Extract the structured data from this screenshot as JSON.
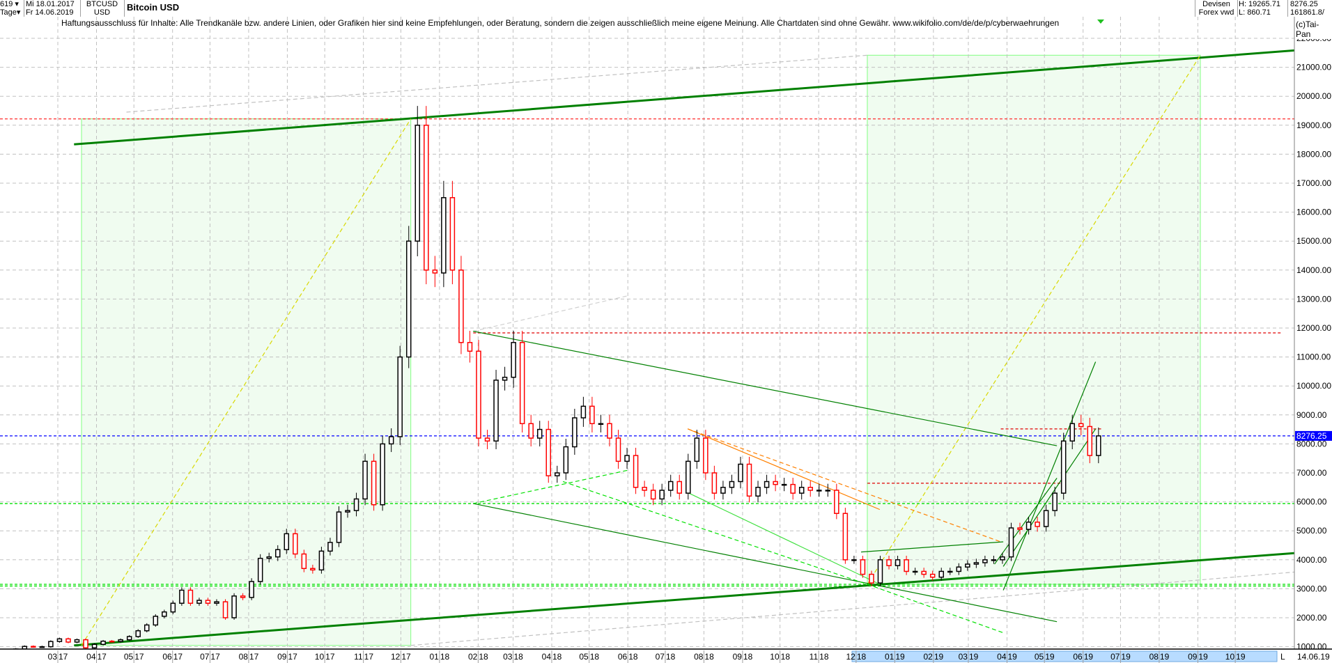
{
  "header": {
    "bars_count": "619",
    "period": "Tage",
    "date_from": "Mi 18.01.2017",
    "date_to": "Fr 14.06.2019",
    "symbol": "BTCUSD",
    "currency": "USD",
    "title": "Bitcoin USD",
    "source_line1": "Devisen",
    "source_line2": "Forex vwd",
    "high": "H: 19265.71",
    "low": "L: 860.71",
    "last": "8276.25",
    "volume": "161861.8/",
    "copyright": "(c)Tai-Pan",
    "disclaimer": "Haftungsausschluss für Inhalte: Alle Trendkanäle bzw. andere Linien, oder Grafiken hier sind keine Empfehlungen, oder Beratung, sondern die zeigen ausschließlich meine eigene Meinung. Alle Chartdaten sind ohne Gewähr.  www.wikifolio.com/de/de/p/cyberwaehrungen",
    "last_date": "14.06.19",
    "scroll_marker": "L"
  },
  "colors": {
    "up": "#000000",
    "down": "#ff0000",
    "channel": "#008000",
    "zone": "#f0fcf0",
    "zone_border": "#80ff80",
    "last_price": "#0000ff"
  },
  "chart_data": {
    "type": "candlestick",
    "title": "Bitcoin USD",
    "ylim": [
      1000,
      22000
    ],
    "yscale": "linear",
    "grid": true,
    "yticks": [
      "22000.00",
      "21000.00",
      "20000.00",
      "19000.00",
      "18000.00",
      "17000.00",
      "16000.00",
      "15000.00",
      "14000.00",
      "13000.00",
      "12000.00",
      "11000.00",
      "10000.00",
      "9000.00",
      "8000.00",
      "7000.00",
      "6000.00",
      "5000.00",
      "4000.00",
      "3000.00",
      "2000.00",
      "1000.00"
    ],
    "xticks": [
      {
        "date": "2017-03-01",
        "m": "03",
        "y": "17"
      },
      {
        "date": "2017-04-01",
        "m": "04",
        "y": "17"
      },
      {
        "date": "2017-05-01",
        "m": "05",
        "y": "17"
      },
      {
        "date": "2017-06-01",
        "m": "06",
        "y": "17"
      },
      {
        "date": "2017-07-01",
        "m": "07",
        "y": "17"
      },
      {
        "date": "2017-08-01",
        "m": "08",
        "y": "17"
      },
      {
        "date": "2017-09-01",
        "m": "09",
        "y": "17"
      },
      {
        "date": "2017-10-01",
        "m": "10",
        "y": "17"
      },
      {
        "date": "2017-11-01",
        "m": "11",
        "y": "17"
      },
      {
        "date": "2017-12-01",
        "m": "12",
        "y": "17"
      },
      {
        "date": "2018-01-01",
        "m": "01",
        "y": "18"
      },
      {
        "date": "2018-02-01",
        "m": "02",
        "y": "18"
      },
      {
        "date": "2018-03-01",
        "m": "03",
        "y": "18"
      },
      {
        "date": "2018-04-01",
        "m": "04",
        "y": "18"
      },
      {
        "date": "2018-05-01",
        "m": "05",
        "y": "18"
      },
      {
        "date": "2018-06-01",
        "m": "06",
        "y": "18"
      },
      {
        "date": "2018-07-01",
        "m": "07",
        "y": "18"
      },
      {
        "date": "2018-08-01",
        "m": "08",
        "y": "18"
      },
      {
        "date": "2018-09-01",
        "m": "09",
        "y": "18"
      },
      {
        "date": "2018-10-01",
        "m": "10",
        "y": "18"
      },
      {
        "date": "2018-11-01",
        "m": "11",
        "y": "18"
      },
      {
        "date": "2018-12-01",
        "m": "12",
        "y": "18"
      },
      {
        "date": "2019-01-01",
        "m": "01",
        "y": "19"
      },
      {
        "date": "2019-02-01",
        "m": "02",
        "y": "19"
      },
      {
        "date": "2019-03-01",
        "m": "03",
        "y": "19"
      },
      {
        "date": "2019-04-01",
        "m": "04",
        "y": "19"
      },
      {
        "date": "2019-05-01",
        "m": "05",
        "y": "19"
      },
      {
        "date": "2019-06-01",
        "m": "06",
        "y": "19"
      },
      {
        "date": "2019-07-01",
        "m": "07",
        "y": "19"
      },
      {
        "date": "2019-08-01",
        "m": "08",
        "y": "19"
      },
      {
        "date": "2019-09-01",
        "m": "09",
        "y": "19"
      },
      {
        "date": "2019-10-01",
        "m": "10",
        "y": "19"
      }
    ],
    "last_price_label": "8276.25",
    "weekly_close": [
      [
        "2017-01-16",
        830
      ],
      [
        "2017-01-23",
        920
      ],
      [
        "2017-01-30",
        1010
      ],
      [
        "2017-02-06",
        1000
      ],
      [
        "2017-02-13",
        1000
      ],
      [
        "2017-02-20",
        1180
      ],
      [
        "2017-02-27",
        1270
      ],
      [
        "2017-03-06",
        1160
      ],
      [
        "2017-03-13",
        1240
      ],
      [
        "2017-03-20",
        960
      ],
      [
        "2017-03-27",
        1080
      ],
      [
        "2017-04-03",
        1190
      ],
      [
        "2017-04-10",
        1180
      ],
      [
        "2017-04-17",
        1240
      ],
      [
        "2017-04-24",
        1350
      ],
      [
        "2017-05-01",
        1550
      ],
      [
        "2017-05-08",
        1750
      ],
      [
        "2017-05-15",
        2050
      ],
      [
        "2017-05-22",
        2200
      ],
      [
        "2017-05-29",
        2500
      ],
      [
        "2017-06-05",
        2950
      ],
      [
        "2017-06-12",
        2500
      ],
      [
        "2017-06-19",
        2600
      ],
      [
        "2017-06-26",
        2500
      ],
      [
        "2017-07-03",
        2550
      ],
      [
        "2017-07-10",
        2000
      ],
      [
        "2017-07-17",
        2750
      ],
      [
        "2017-07-24",
        2700
      ],
      [
        "2017-07-31",
        3250
      ],
      [
        "2017-08-07",
        4050
      ],
      [
        "2017-08-14",
        4100
      ],
      [
        "2017-08-21",
        4350
      ],
      [
        "2017-08-28",
        4900
      ],
      [
        "2017-09-04",
        4200
      ],
      [
        "2017-09-11",
        3700
      ],
      [
        "2017-09-18",
        3650
      ],
      [
        "2017-09-25",
        4300
      ],
      [
        "2017-10-02",
        4600
      ],
      [
        "2017-10-09",
        5650
      ],
      [
        "2017-10-16",
        5700
      ],
      [
        "2017-10-23",
        6100
      ],
      [
        "2017-10-30",
        7400
      ],
      [
        "2017-11-06",
        5900
      ],
      [
        "2017-11-13",
        8000
      ],
      [
        "2017-11-20",
        8250
      ],
      [
        "2017-11-27",
        11000
      ],
      [
        "2017-12-04",
        15000
      ],
      [
        "2017-12-11",
        19000
      ],
      [
        "2017-12-18",
        14000
      ],
      [
        "2017-12-25",
        13900
      ],
      [
        "2018-01-01",
        16500
      ],
      [
        "2018-01-08",
        14000
      ],
      [
        "2018-01-15",
        11500
      ],
      [
        "2018-01-22",
        11200
      ],
      [
        "2018-01-29",
        8200
      ],
      [
        "2018-02-05",
        8100
      ],
      [
        "2018-02-12",
        10200
      ],
      [
        "2018-02-19",
        10300
      ],
      [
        "2018-02-26",
        11500
      ],
      [
        "2018-03-05",
        8700
      ],
      [
        "2018-03-12",
        8200
      ],
      [
        "2018-03-19",
        8500
      ],
      [
        "2018-03-26",
        6900
      ],
      [
        "2018-04-02",
        7000
      ],
      [
        "2018-04-09",
        7900
      ],
      [
        "2018-04-16",
        8900
      ],
      [
        "2018-04-23",
        9300
      ],
      [
        "2018-04-30",
        8700
      ],
      [
        "2018-05-07",
        8700
      ],
      [
        "2018-05-14",
        8200
      ],
      [
        "2018-05-21",
        7400
      ],
      [
        "2018-05-28",
        7600
      ],
      [
        "2018-06-04",
        6500
      ],
      [
        "2018-06-11",
        6400
      ],
      [
        "2018-06-18",
        6100
      ],
      [
        "2018-06-25",
        6400
      ],
      [
        "2018-07-02",
        6700
      ],
      [
        "2018-07-09",
        6300
      ],
      [
        "2018-07-16",
        7400
      ],
      [
        "2018-07-23",
        8200
      ],
      [
        "2018-07-30",
        7000
      ],
      [
        "2018-08-06",
        6300
      ],
      [
        "2018-08-13",
        6500
      ],
      [
        "2018-08-20",
        6700
      ],
      [
        "2018-08-27",
        7300
      ],
      [
        "2018-09-03",
        6200
      ],
      [
        "2018-09-10",
        6500
      ],
      [
        "2018-09-17",
        6700
      ],
      [
        "2018-09-24",
        6600
      ],
      [
        "2018-10-01",
        6600
      ],
      [
        "2018-10-08",
        6300
      ],
      [
        "2018-10-15",
        6500
      ],
      [
        "2018-10-22",
        6400
      ],
      [
        "2018-10-29",
        6400
      ],
      [
        "2018-11-05",
        6400
      ],
      [
        "2018-11-12",
        5600
      ],
      [
        "2018-11-19",
        4000
      ],
      [
        "2018-11-26",
        4000
      ],
      [
        "2018-12-03",
        3500
      ],
      [
        "2018-12-10",
        3200
      ],
      [
        "2018-12-17",
        4000
      ],
      [
        "2018-12-24",
        3800
      ],
      [
        "2018-12-31",
        4000
      ],
      [
        "2019-01-07",
        3600
      ],
      [
        "2019-01-14",
        3600
      ],
      [
        "2019-01-21",
        3500
      ],
      [
        "2019-01-28",
        3400
      ],
      [
        "2019-02-04",
        3600
      ],
      [
        "2019-02-11",
        3600
      ],
      [
        "2019-02-18",
        3750
      ],
      [
        "2019-02-25",
        3850
      ],
      [
        "2019-03-04",
        3900
      ],
      [
        "2019-03-11",
        4000
      ],
      [
        "2019-03-18",
        4000
      ],
      [
        "2019-03-25",
        4100
      ],
      [
        "2019-04-01",
        5100
      ],
      [
        "2019-04-08",
        5050
      ],
      [
        "2019-04-15",
        5300
      ],
      [
        "2019-04-22",
        5150
      ],
      [
        "2019-04-29",
        5700
      ],
      [
        "2019-05-06",
        6300
      ],
      [
        "2019-05-13",
        8100
      ],
      [
        "2019-05-20",
        8700
      ],
      [
        "2019-05-27",
        8600
      ],
      [
        "2019-06-03",
        7600
      ],
      [
        "2019-06-10",
        8276.25
      ]
    ],
    "zones": [
      {
        "from": [
          "2017-03-20",
          1044
        ],
        "to": [
          "2017-12-09",
          19219
        ]
      },
      {
        "from": [
          "2018-12-10",
          3154
        ],
        "to": [
          "2019-09-03",
          21416
        ]
      }
    ],
    "horizontal_lines": [
      {
        "price": 19219,
        "color": "#ff4040",
        "from": "2017-01-01",
        "to": "2019-12-31"
      },
      {
        "price": 11831,
        "color": "#e00000",
        "from": "2018-01-28",
        "to": "2019-11-08"
      },
      {
        "price": 8518,
        "color": "#e00000",
        "from": "2019-03-27",
        "to": "2019-06-17"
      },
      {
        "price": 6643,
        "color": "#e00000",
        "from": "2018-12-10",
        "to": "2019-05-14"
      },
      {
        "price": 8276.25,
        "color": "#0000ff",
        "from": "2017-01-01",
        "to": "2019-12-31"
      },
      {
        "price": 5941,
        "color": "#00e000",
        "from": "2017-01-01",
        "to": "2019-12-31"
      },
      {
        "price": 3095,
        "color": "#00e000",
        "from": "2017-01-01",
        "to": "2019-12-31"
      },
      {
        "price": 3154,
        "color": "#00e000",
        "from": "2017-01-01",
        "to": "2019-12-31"
      }
    ],
    "trendlines": [
      {
        "from": [
          "2017-03-14",
          18339
        ],
        "to": [
          "2019-12-17",
          21680
        ],
        "color": "#008000",
        "style": "solid",
        "weight": "thick"
      },
      {
        "from": [
          "2017-03-14",
          1044
        ],
        "to": [
          "2019-12-17",
          4326
        ],
        "color": "#008000",
        "style": "solid",
        "weight": "thick"
      },
      {
        "from": [
          "2017-03-20",
          1044
        ],
        "to": [
          "2017-12-09",
          19219
        ],
        "color": "#d8d800",
        "style": "dashed",
        "weight": "thin"
      },
      {
        "from": [
          "2018-12-10",
          3154
        ],
        "to": [
          "2019-09-03",
          21416
        ],
        "color": "#d8d800",
        "style": "dashed",
        "weight": "thin"
      },
      {
        "from": [
          "2017-04-25",
          19452
        ],
        "to": [
          "2018-12-10",
          21416
        ],
        "color": "#c0c0c0",
        "style": "dashed",
        "weight": "thin"
      },
      {
        "from": [
          "2017-12-09",
          1044
        ],
        "to": [
          "2019-12-17",
          3682
        ],
        "color": "#c0c0c0",
        "style": "dashed",
        "weight": "thin"
      },
      {
        "from": [
          "2018-01-28",
          11889
        ],
        "to": [
          "2018-06-02",
          13122
        ],
        "color": "#d0d0d0",
        "style": "dashed",
        "weight": "thin"
      },
      {
        "from": [
          "2018-01-28",
          11889
        ],
        "to": [
          "2019-05-11",
          7936
        ],
        "color": "#008000",
        "style": "solid",
        "weight": "thin"
      },
      {
        "from": [
          "2018-01-28",
          5941
        ],
        "to": [
          "2019-05-11",
          1864
        ],
        "color": "#008000",
        "style": "solid",
        "weight": "thin"
      },
      {
        "from": [
          "2018-01-28",
          5941
        ],
        "to": [
          "2018-06-02",
          7100
        ],
        "color": "#00e000",
        "style": "dashed",
        "weight": "thin"
      },
      {
        "from": [
          "2018-04-10",
          6700
        ],
        "to": [
          "2018-12-10",
          3154
        ],
        "color": "#00e000",
        "style": "dashed",
        "weight": "thin"
      },
      {
        "from": [
          "2018-07-19",
          6319
        ],
        "to": [
          "2018-12-20",
          3154
        ],
        "color": "#40e040",
        "style": "solid",
        "weight": "thin"
      },
      {
        "from": [
          "2018-12-10",
          3154
        ],
        "to": [
          "2019-03-29",
          1482
        ],
        "color": "#00e000",
        "style": "dashed",
        "weight": "thin"
      },
      {
        "from": [
          "2018-07-19",
          8518
        ],
        "to": [
          "2019-03-27",
          4620
        ],
        "color": "#ff8000",
        "style": "dashed",
        "weight": "thin"
      },
      {
        "from": [
          "2018-07-19",
          8518
        ],
        "to": [
          "2018-12-20",
          5735
        ],
        "color": "#ff8000",
        "style": "solid",
        "weight": "thin"
      },
      {
        "from": [
          "2018-12-05",
          4268
        ],
        "to": [
          "2019-03-29",
          4620
        ],
        "color": "#008000",
        "style": "solid",
        "weight": "thin"
      },
      {
        "from": [
          "2019-03-29",
          2948
        ],
        "to": [
          "2019-06-11",
          10834
        ],
        "color": "#008000",
        "style": "solid",
        "weight": "thin"
      },
      {
        "from": [
          "2019-03-29",
          3770
        ],
        "to": [
          "2019-06-11",
          8518
        ],
        "color": "#008000",
        "style": "solid",
        "weight": "thin"
      },
      {
        "from": [
          "2019-03-22",
          3850
        ],
        "to": [
          "2019-05-11",
          6819
        ],
        "color": "#008000",
        "style": "solid",
        "weight": "thin"
      }
    ]
  }
}
